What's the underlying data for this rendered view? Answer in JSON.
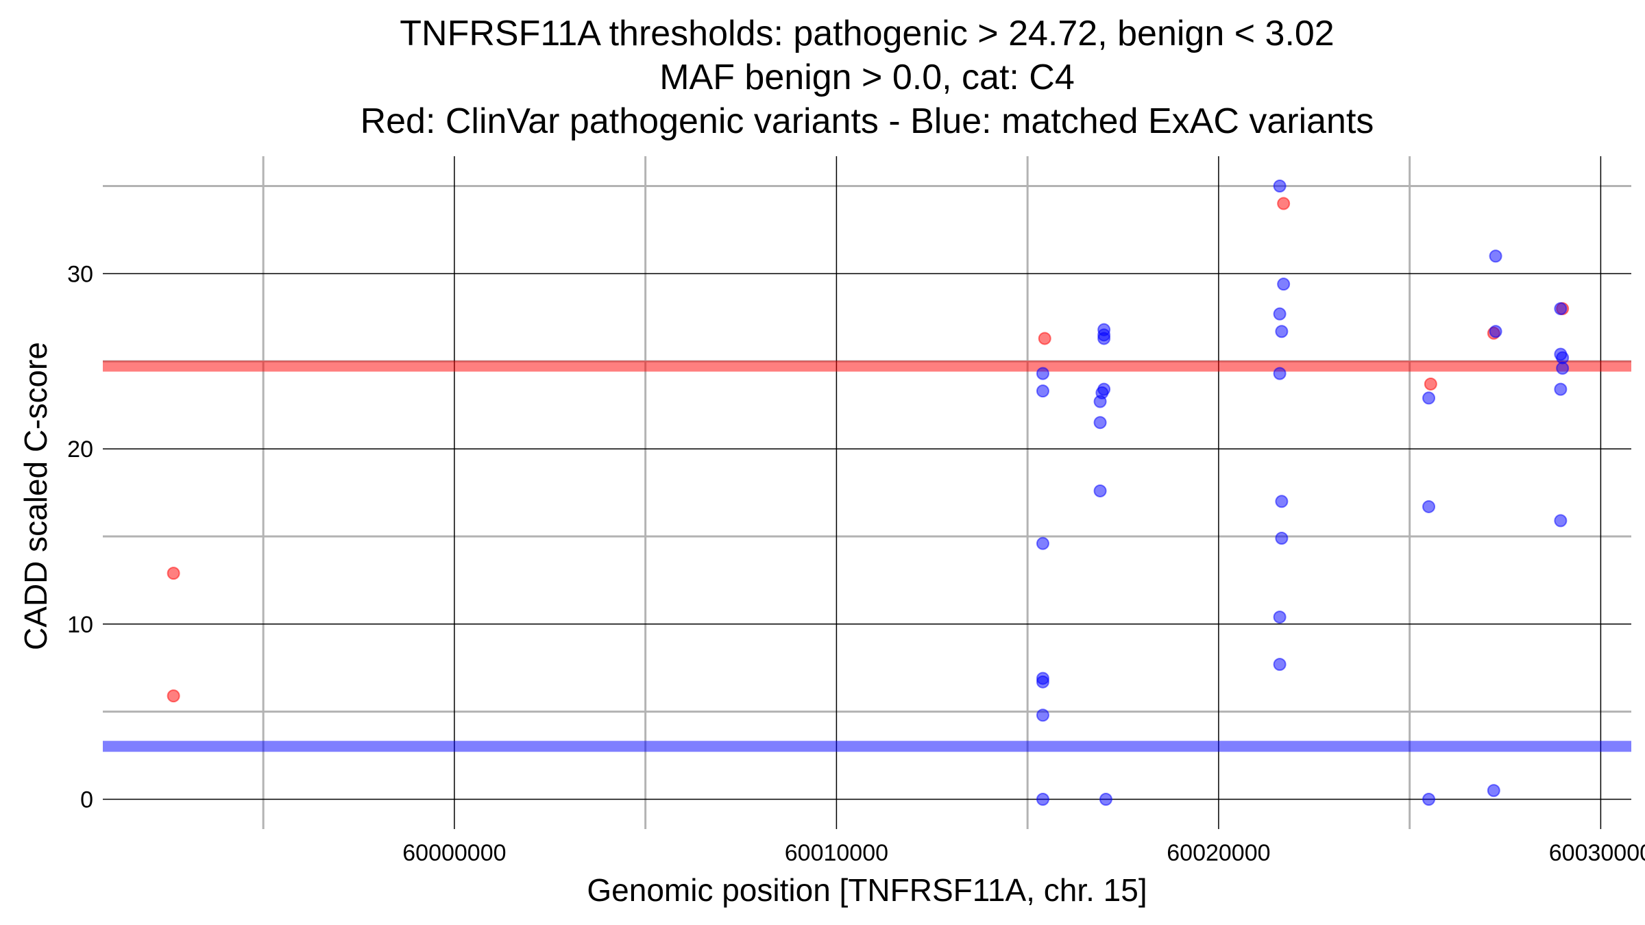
{
  "chart_data": {
    "type": "scatter",
    "title_lines": [
      "TNFRSF11A thresholds: pathogenic > 24.72, benign < 3.02",
      "MAF benign > 0.0, cat: C4",
      "Red: ClinVar pathogenic variants - Blue: matched ExAC variants"
    ],
    "xlabel": "Genomic position [TNFRSF11A, chr. 15]",
    "ylabel": "CADD scaled C-score",
    "xlim": [
      59990800,
      60030800
    ],
    "ylim": [
      -1.7,
      36.7
    ],
    "x_ticks": [
      60000000,
      60010000,
      60020000,
      60030000
    ],
    "y_ticks": [
      0,
      10,
      20,
      30
    ],
    "x_minor_gridlines": [
      59995000,
      60005000,
      60015000,
      60025000
    ],
    "y_minor_gridlines": [
      5,
      15,
      25,
      35
    ],
    "grid": true,
    "thresholds": [
      {
        "name": "pathogenic",
        "value": 24.72,
        "color": "#ff0000"
      },
      {
        "name": "benign",
        "value": 3.02,
        "color": "#0000ff"
      }
    ],
    "series": [
      {
        "color": "#ff0000",
        "points": [
          {
            "x": 59992650,
            "y": 12.9
          },
          {
            "x": 59992650,
            "y": 5.9
          },
          {
            "x": 60015450,
            "y": 26.3
          },
          {
            "x": 60021700,
            "y": 34.0
          },
          {
            "x": 60025550,
            "y": 23.7
          },
          {
            "x": 60027200,
            "y": 26.6
          },
          {
            "x": 60029000,
            "y": 28.0
          }
        ]
      },
      {
        "color": "#0000ff",
        "points": [
          {
            "x": 60015400,
            "y": 24.3
          },
          {
            "x": 60015400,
            "y": 23.3
          },
          {
            "x": 60015400,
            "y": 14.6
          },
          {
            "x": 60015400,
            "y": 6.9
          },
          {
            "x": 60015400,
            "y": 6.7
          },
          {
            "x": 60015400,
            "y": 4.8
          },
          {
            "x": 60015400,
            "y": 0.0
          },
          {
            "x": 60017000,
            "y": 26.8
          },
          {
            "x": 60017000,
            "y": 26.5
          },
          {
            "x": 60017000,
            "y": 26.3
          },
          {
            "x": 60017000,
            "y": 23.4
          },
          {
            "x": 60016950,
            "y": 23.2
          },
          {
            "x": 60016900,
            "y": 22.7
          },
          {
            "x": 60016900,
            "y": 21.5
          },
          {
            "x": 60016900,
            "y": 17.6
          },
          {
            "x": 60017050,
            "y": 0.0
          },
          {
            "x": 60021600,
            "y": 35.0
          },
          {
            "x": 60021700,
            "y": 29.4
          },
          {
            "x": 60021600,
            "y": 27.7
          },
          {
            "x": 60021650,
            "y": 26.7
          },
          {
            "x": 60021600,
            "y": 24.3
          },
          {
            "x": 60021650,
            "y": 17.0
          },
          {
            "x": 60021650,
            "y": 14.9
          },
          {
            "x": 60021600,
            "y": 10.4
          },
          {
            "x": 60021600,
            "y": 7.7
          },
          {
            "x": 60025500,
            "y": 22.9
          },
          {
            "x": 60025500,
            "y": 16.7
          },
          {
            "x": 60025500,
            "y": 0.0
          },
          {
            "x": 60027250,
            "y": 31.0
          },
          {
            "x": 60027250,
            "y": 26.7
          },
          {
            "x": 60027200,
            "y": 0.5
          },
          {
            "x": 60028950,
            "y": 28.0
          },
          {
            "x": 60028950,
            "y": 25.4
          },
          {
            "x": 60029000,
            "y": 25.2
          },
          {
            "x": 60029000,
            "y": 24.6
          },
          {
            "x": 60028950,
            "y": 23.4
          },
          {
            "x": 60028950,
            "y": 15.9
          }
        ]
      }
    ]
  }
}
